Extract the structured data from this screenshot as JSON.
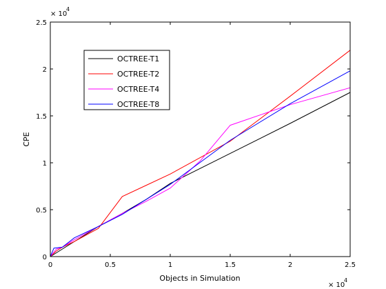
{
  "chart_data": {
    "type": "line",
    "xlabel": "Objects in Simulation",
    "ylabel": "CPE",
    "xlim": [
      0,
      25000
    ],
    "ylim": [
      0,
      25000
    ],
    "x_ticks": [
      0,
      5000,
      10000,
      15000,
      20000,
      25000
    ],
    "y_ticks": [
      0,
      5000,
      10000,
      15000,
      20000,
      25000
    ],
    "x_tick_labels": [
      "0",
      "0.5",
      "1",
      "1.5",
      "2",
      "2.5"
    ],
    "y_tick_labels": [
      "0",
      "0.5",
      "1",
      "1.5",
      "2",
      "2.5"
    ],
    "x_exponent_label": "× 10",
    "x_exponent_power": "4",
    "y_exponent_label": "× 10",
    "y_exponent_power": "4",
    "grid": false,
    "legend_position": "upper-left",
    "series": [
      {
        "name": "OCTREE-T1",
        "color": "#000000",
        "x": [
          0,
          2000,
          4000,
          6000,
          8000,
          10000,
          15000,
          20000,
          25000
        ],
        "y": [
          0,
          1600,
          3200,
          4600,
          6100,
          7800,
          11000,
          14200,
          17500
        ]
      },
      {
        "name": "OCTREE-T2",
        "color": "#ff0000",
        "x": [
          0,
          500,
          1000,
          2000,
          4000,
          6000,
          8000,
          10000,
          15000,
          20000,
          25000
        ],
        "y": [
          0,
          600,
          1000,
          1600,
          3000,
          6400,
          7600,
          8800,
          12300,
          17100,
          22000
        ]
      },
      {
        "name": "OCTREE-T4",
        "color": "#ff00ff",
        "x": [
          0,
          500,
          1000,
          2000,
          4000,
          6000,
          8000,
          10000,
          12500,
          15000,
          20000,
          25000
        ],
        "y": [
          0,
          800,
          1000,
          1800,
          3200,
          4600,
          5900,
          7300,
          10200,
          14000,
          16200,
          18000
        ]
      },
      {
        "name": "OCTREE-T8",
        "color": "#0000ff",
        "x": [
          0,
          300,
          1000,
          2000,
          4000,
          6000,
          8000,
          10000,
          15000,
          20000,
          25000
        ],
        "y": [
          0,
          900,
          1000,
          2000,
          3200,
          4500,
          6100,
          7700,
          12400,
          16300,
          19800
        ]
      }
    ]
  }
}
